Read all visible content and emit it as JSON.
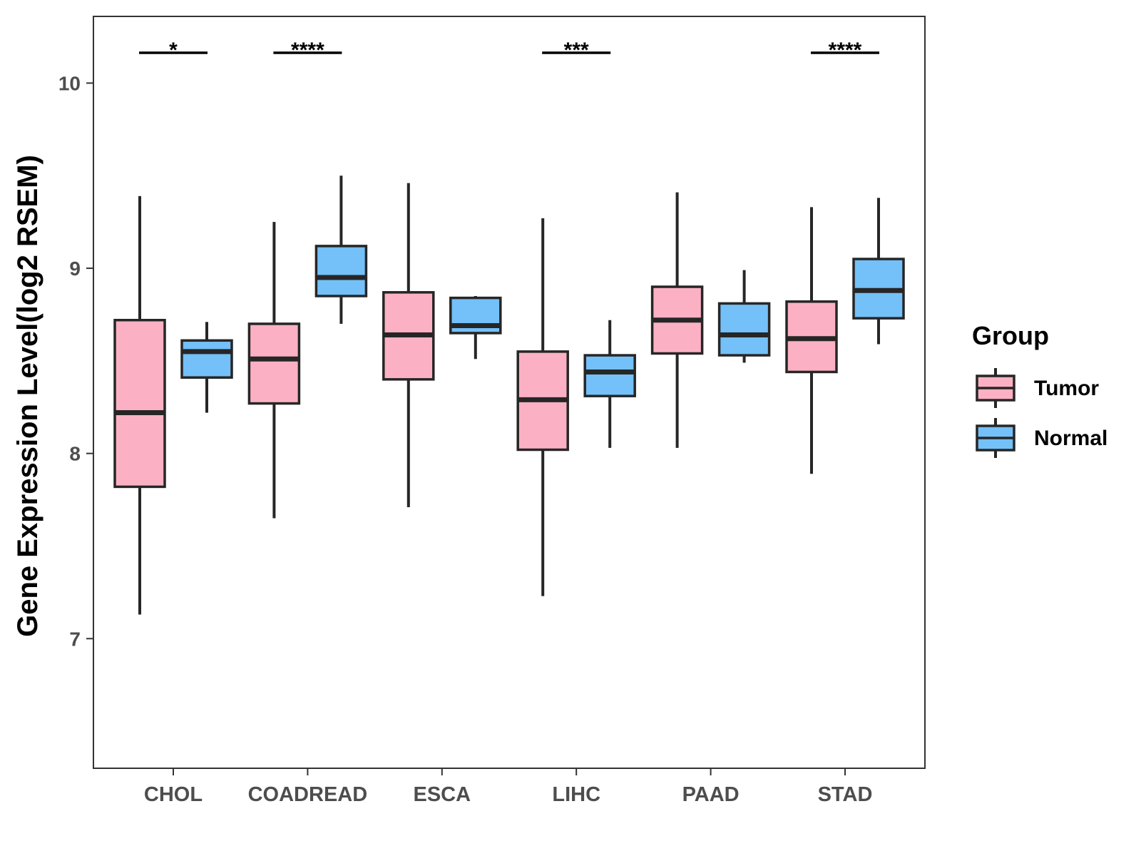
{
  "chart_data": {
    "type": "boxplot",
    "title": "",
    "xlabel": "",
    "ylabel": "Gene Expression Level(log2 RSEM)",
    "ylim": [
      6.3,
      10.36
    ],
    "yticks": [
      7,
      8,
      9,
      10
    ],
    "grid": false,
    "legend": {
      "title": "Group",
      "position": "right"
    },
    "categories": [
      "CHOL",
      "COADREAD",
      "ESCA",
      "LIHC",
      "PAAD",
      "STAD"
    ],
    "series": [
      {
        "name": "Tumor",
        "color": "#FBB1C3",
        "boxes": [
          {
            "min": 7.13,
            "q1": 7.82,
            "median": 8.22,
            "q3": 8.72,
            "max": 9.39
          },
          {
            "min": 7.65,
            "q1": 8.27,
            "median": 8.51,
            "q3": 8.7,
            "max": 9.25
          },
          {
            "min": 7.71,
            "q1": 8.4,
            "median": 8.64,
            "q3": 8.87,
            "max": 9.46
          },
          {
            "min": 7.23,
            "q1": 8.02,
            "median": 8.29,
            "q3": 8.55,
            "max": 9.27
          },
          {
            "min": 8.03,
            "q1": 8.54,
            "median": 8.72,
            "q3": 8.9,
            "max": 9.41
          },
          {
            "min": 7.89,
            "q1": 8.44,
            "median": 8.62,
            "q3": 8.82,
            "max": 9.33
          }
        ]
      },
      {
        "name": "Normal",
        "color": "#74C0F8",
        "boxes": [
          {
            "min": 8.22,
            "q1": 8.41,
            "median": 8.55,
            "q3": 8.61,
            "max": 8.71
          },
          {
            "min": 8.7,
            "q1": 8.85,
            "median": 8.95,
            "q3": 9.12,
            "max": 9.5
          },
          {
            "min": 8.51,
            "q1": 8.65,
            "median": 8.69,
            "q3": 8.84,
            "max": 8.85
          },
          {
            "min": 8.03,
            "q1": 8.31,
            "median": 8.44,
            "q3": 8.53,
            "max": 8.72
          },
          {
            "min": 8.49,
            "q1": 8.53,
            "median": 8.64,
            "q3": 8.81,
            "max": 8.99
          },
          {
            "min": 8.59,
            "q1": 8.73,
            "median": 8.88,
            "q3": 9.05,
            "max": 9.38
          }
        ]
      }
    ],
    "significance": [
      "*",
      "****",
      "",
      "***",
      "",
      "****"
    ]
  }
}
